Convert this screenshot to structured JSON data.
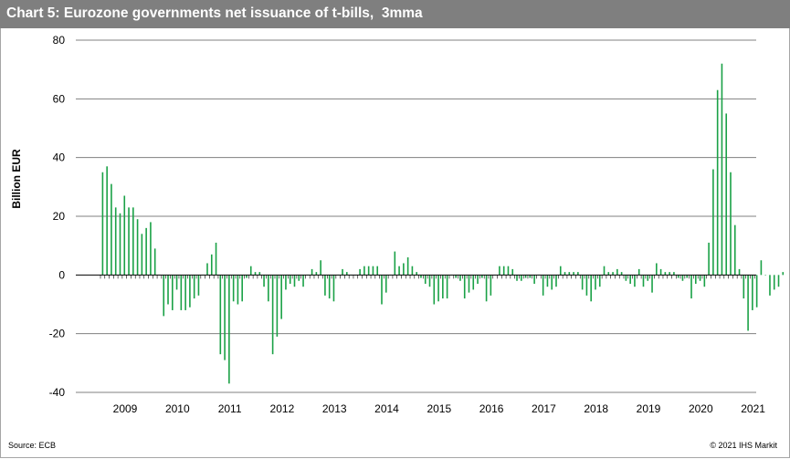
{
  "header": {
    "title": "Chart 5: Eurozone governments net issuance of t-bills,  3mma"
  },
  "footer": {
    "source": "Source: ECB",
    "copyright": "© 2021  IHS Markit"
  },
  "colors": {
    "bar": "#1aa146",
    "title_bg": "#7f7f7f",
    "grid": "#808080"
  },
  "chart_data": {
    "type": "bar",
    "title": "Chart 5: Eurozone governments net issuance of t-bills,  3mma",
    "xlabel": "",
    "ylabel": "Billion EUR",
    "ylim": [
      -40,
      80
    ],
    "yticks": [
      -40,
      -20,
      0,
      20,
      40,
      60,
      80
    ],
    "grid": "horizontal",
    "xtick_labels": [
      "2009",
      "2010",
      "2011",
      "2012",
      "2013",
      "2014",
      "2015",
      "2016",
      "2017",
      "2018",
      "2019",
      "2020",
      "2021"
    ],
    "x_start": "2008-01",
    "x_frequency": "monthly",
    "values": [
      35,
      37,
      31,
      23,
      21,
      27,
      23,
      23,
      19,
      14,
      16,
      18,
      9,
      0,
      -14,
      -10,
      -12,
      -5,
      -12,
      -12,
      -11,
      -8,
      -7,
      0,
      4,
      7,
      11,
      -27,
      -29,
      -37,
      -9,
      -10,
      -9,
      -1,
      3,
      1,
      1,
      -4,
      -9,
      -27,
      -21,
      -15,
      -5,
      -3,
      -4,
      -2,
      -4,
      0,
      2,
      1,
      5,
      -7,
      -8,
      -9,
      0,
      2,
      1,
      0,
      0,
      2,
      3,
      3,
      3,
      3,
      -10,
      -6,
      0,
      8,
      3,
      4,
      6,
      3,
      1,
      -1,
      -3,
      -4,
      -10,
      -9,
      -8,
      -8,
      0,
      -1,
      -2,
      -8,
      -6,
      -5,
      -3,
      -1,
      -9,
      -7,
      0,
      3,
      3,
      3,
      2,
      -2,
      -2,
      -1,
      -1,
      -3,
      0,
      -7,
      -4,
      -5,
      -4,
      3,
      1,
      1,
      1,
      1,
      -5,
      -7,
      -9,
      -5,
      -4,
      3,
      1,
      1,
      2,
      1,
      -2,
      -3,
      -4,
      2,
      -4,
      -2,
      -6,
      4,
      2,
      1,
      1,
      1,
      -1,
      -2,
      -1,
      -8,
      -3,
      -2,
      -4,
      11,
      36,
      63,
      72,
      55,
      35,
      17,
      2,
      -8,
      -19,
      -12,
      -11,
      5,
      0,
      -7,
      -5,
      -4,
      1
    ]
  }
}
